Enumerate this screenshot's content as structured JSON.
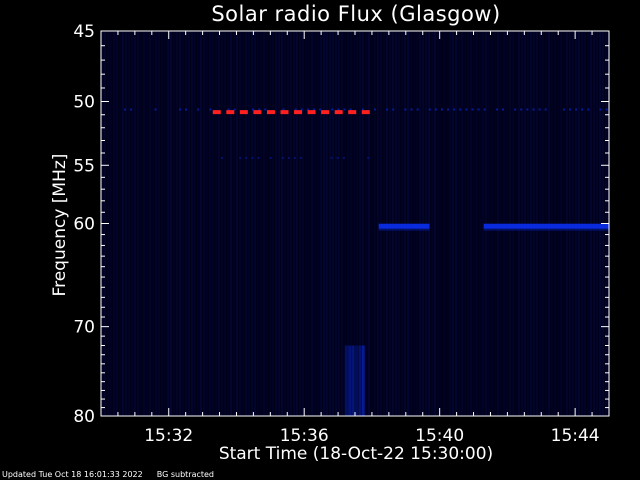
{
  "chart_data": {
    "type": "heatmap",
    "title": "Solar radio Flux (Glasgow)",
    "xlabel": "Start Time (18-Oct-22 15:30:00)",
    "ylabel": "Frequency [MHz]",
    "x_ticks": [
      "15:32",
      "15:36",
      "15:40",
      "15:44"
    ],
    "x_tick_minutes": [
      2,
      6,
      10,
      14
    ],
    "xlim_minutes": [
      0,
      15
    ],
    "y_ticks": [
      45,
      50,
      55,
      60,
      70,
      80
    ],
    "ylim": [
      45,
      80
    ],
    "y_scale": "log",
    "colors": {
      "background": "#000000",
      "field": "#00001a",
      "signal": "#0a32ff",
      "strong": "#ff2020"
    },
    "features": [
      {
        "name": "red-band-51mhz",
        "freq": 50.8,
        "t_start": 3.3,
        "t_end": 8.0,
        "color": "#ff2020"
      },
      {
        "name": "band-60mhz-mid",
        "freq": 60.2,
        "t_start": 8.2,
        "t_end": 9.7,
        "color": "#0a32ff"
      },
      {
        "name": "band-60mhz-late",
        "freq": 60.2,
        "t_start": 11.3,
        "t_end": 15.0,
        "color": "#0a32ff"
      },
      {
        "name": "burst-1537",
        "freq_low": 72.0,
        "freq_high": 80.0,
        "t_start": 7.2,
        "t_end": 7.8,
        "color": "#0a32ff"
      }
    ]
  },
  "footer": {
    "updated": "Updated Tue Oct 18 16:01:33 2022",
    "note": "BG subtracted"
  }
}
